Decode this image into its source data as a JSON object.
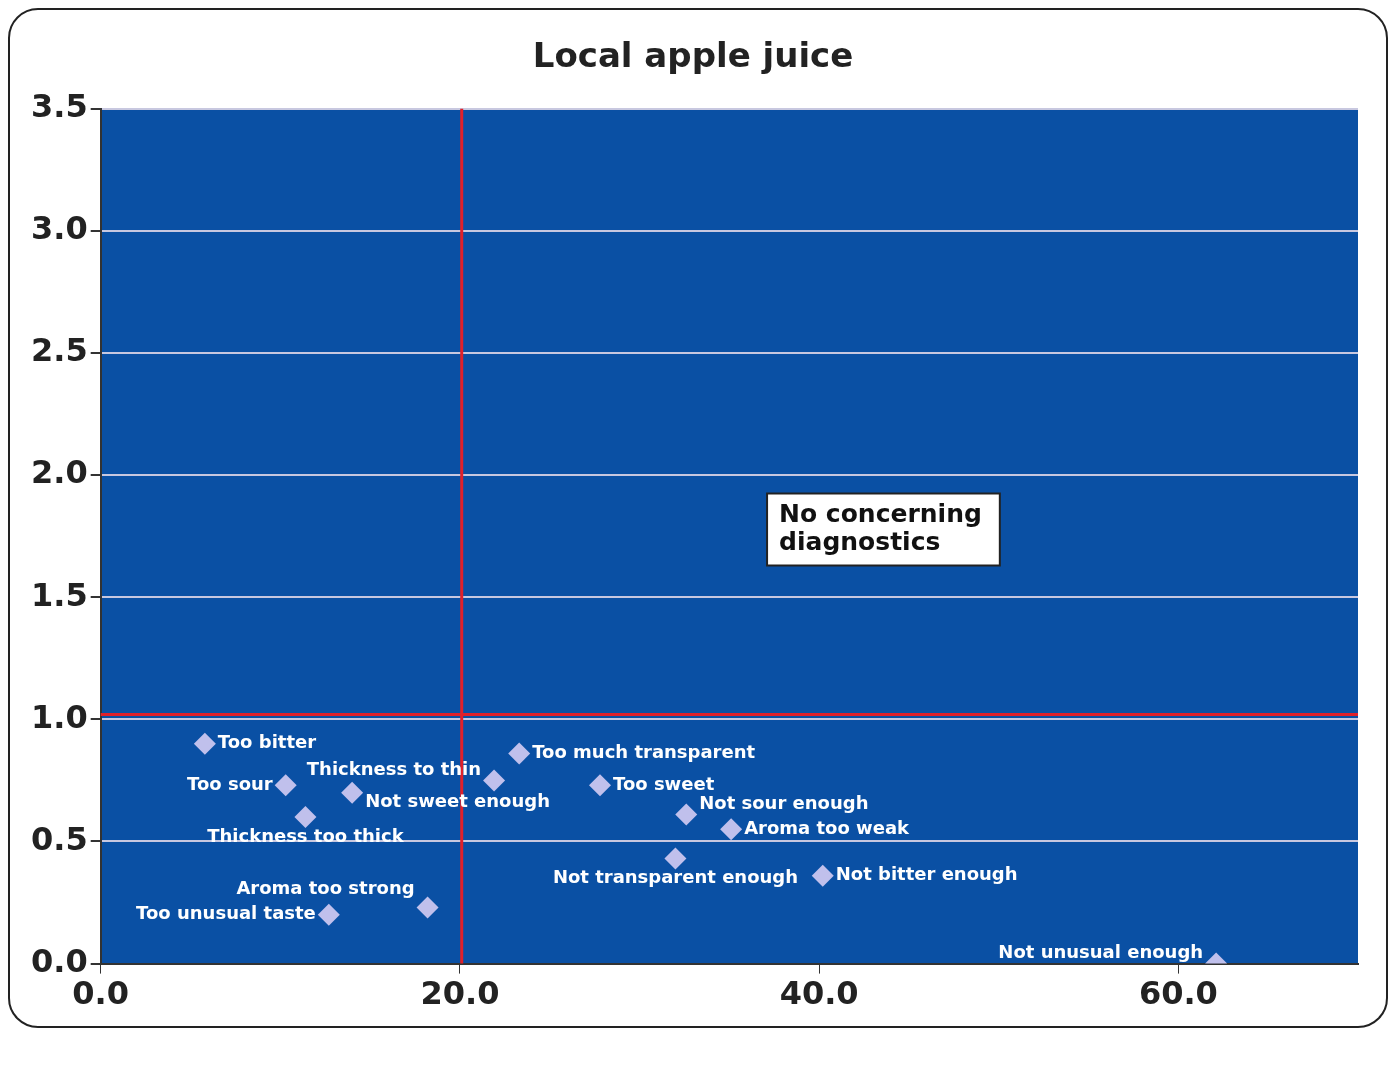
{
  "chart_data": {
    "type": "scatter",
    "title": "Local apple juice",
    "marker": "diamond",
    "grid": "y",
    "legend": false,
    "xlim": [
      0,
      70
    ],
    "xticks": [
      {
        "value": 0,
        "label": "0.0"
      },
      {
        "value": 20,
        "label": "20.0"
      },
      {
        "value": 40,
        "label": "40.0"
      },
      {
        "value": 60,
        "label": "60.0"
      }
    ],
    "ylim": [
      0,
      3.5
    ],
    "yticks": [
      {
        "value": 0,
        "label": "0.0"
      },
      {
        "value": 0.5,
        "label": "0.5"
      },
      {
        "value": 1,
        "label": "1.0"
      },
      {
        "value": 1.5,
        "label": "1.5"
      },
      {
        "value": 2,
        "label": "2.0"
      },
      {
        "value": 2.5,
        "label": "2.5"
      },
      {
        "value": 3,
        "label": "3.0"
      },
      {
        "value": 3.5,
        "label": "3.5"
      }
    ],
    "ref_lines": [
      {
        "axis": "x",
        "value": 20.1,
        "color": "#e0202a"
      },
      {
        "axis": "y",
        "value": 1.02,
        "color": "#e0202a"
      }
    ],
    "annotations": [
      "No concerning\ndiagnostics"
    ],
    "series": [
      {
        "name": "Too bitter",
        "color": "#c0c0ec",
        "x": [
          5.8
        ],
        "values": [
          0.9
        ]
      },
      {
        "name": "Too sour",
        "color": "#c0c0ec",
        "x": [
          10.3
        ],
        "values": [
          0.73
        ]
      },
      {
        "name": "Not sweet enough",
        "color": "#c0c0ec",
        "x": [
          14.0
        ],
        "values": [
          0.7
        ]
      },
      {
        "name": "Thickness too thick",
        "color": "#c0c0ec",
        "x": [
          11.4
        ],
        "values": [
          0.6
        ]
      },
      {
        "name": "Too unusual taste",
        "color": "#c0c0ec",
        "x": [
          12.7
        ],
        "values": [
          0.2
        ]
      },
      {
        "name": "Aroma too strong",
        "color": "#c0c0ec",
        "x": [
          18.2
        ],
        "values": [
          0.23
        ]
      },
      {
        "name": "Thickness to thin",
        "color": "#c0c0ec",
        "x": [
          21.9
        ],
        "values": [
          0.75
        ]
      },
      {
        "name": "Too much transparent",
        "color": "#c0c0ec",
        "x": [
          23.3
        ],
        "values": [
          0.86
        ]
      },
      {
        "name": "Too sweet",
        "color": "#c0c0ec",
        "x": [
          27.8
        ],
        "values": [
          0.73
        ]
      },
      {
        "name": "Not sour enough",
        "color": "#c0c0ec",
        "x": [
          32.6
        ],
        "values": [
          0.61
        ]
      },
      {
        "name": "Aroma too weak",
        "color": "#c0c0ec",
        "x": [
          35.1
        ],
        "values": [
          0.55
        ]
      },
      {
        "name": "Not transparent enough",
        "color": "#c0c0ec",
        "x": [
          32.0
        ],
        "values": [
          0.43
        ]
      },
      {
        "name": "Not bitter enough",
        "color": "#c0c0ec",
        "x": [
          40.2
        ],
        "values": [
          0.36
        ]
      },
      {
        "name": "Not unusual enough",
        "color": "#c0c0ec",
        "x": [
          62.1
        ],
        "values": [
          0.0
        ]
      }
    ]
  }
}
